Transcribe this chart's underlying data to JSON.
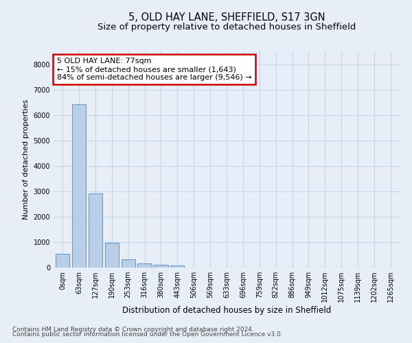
{
  "title": "5, OLD HAY LANE, SHEFFIELD, S17 3GN",
  "subtitle": "Size of property relative to detached houses in Sheffield",
  "xlabel": "Distribution of detached houses by size in Sheffield",
  "ylabel": "Number of detached properties",
  "footnote1": "Contains HM Land Registry data © Crown copyright and database right 2024.",
  "footnote2": "Contains public sector information licensed under the Open Government Licence v3.0.",
  "annotation_line1": "5 OLD HAY LANE: 77sqm",
  "annotation_line2": "← 15% of detached houses are smaller (1,643)",
  "annotation_line3": "84% of semi-detached houses are larger (9,546) →",
  "bar_labels": [
    "0sqm",
    "63sqm",
    "127sqm",
    "190sqm",
    "253sqm",
    "316sqm",
    "380sqm",
    "443sqm",
    "506sqm",
    "569sqm",
    "633sqm",
    "696sqm",
    "759sqm",
    "822sqm",
    "886sqm",
    "949sqm",
    "1012sqm",
    "1075sqm",
    "1139sqm",
    "1202sqm",
    "1265sqm"
  ],
  "bar_values": [
    530,
    6430,
    2920,
    970,
    330,
    160,
    105,
    70,
    0,
    0,
    0,
    0,
    0,
    0,
    0,
    0,
    0,
    0,
    0,
    0,
    0
  ],
  "bar_color": "#b8cfe8",
  "bar_edge_color": "#6699cc",
  "background_color": "#e8eef7",
  "plot_bg_color": "#e8eef7",
  "grid_color": "#c8d4e8",
  "ylim": [
    0,
    8500
  ],
  "yticks": [
    0,
    1000,
    2000,
    3000,
    4000,
    5000,
    6000,
    7000,
    8000
  ],
  "annotation_box_facecolor": "#ffffff",
  "annotation_box_edgecolor": "#cc0000",
  "title_fontsize": 10.5,
  "subtitle_fontsize": 9.5,
  "xlabel_fontsize": 8.5,
  "ylabel_fontsize": 8,
  "tick_fontsize": 7,
  "annotation_fontsize": 8,
  "footnote_fontsize": 6.5
}
